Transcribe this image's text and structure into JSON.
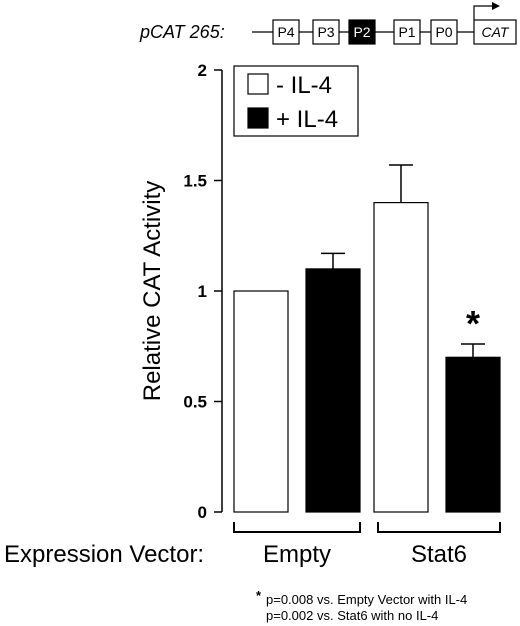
{
  "construct": {
    "name": "pCAT 265:",
    "elements": [
      "P4",
      "P3",
      "P2",
      "P1",
      "P0"
    ],
    "highlighted": "P2",
    "reporter": "CAT"
  },
  "chart_data": {
    "type": "bar",
    "categories": [
      "Empty",
      "Stat6"
    ],
    "series": [
      {
        "name": "- IL-4",
        "values": [
          1.0,
          1.4
        ],
        "errors": [
          0,
          0.17
        ],
        "color": "#ffffff"
      },
      {
        "name": "+ IL-4",
        "values": [
          1.1,
          0.7
        ],
        "errors": [
          0.07,
          0.06
        ],
        "color": "#000000"
      }
    ],
    "xlabel": "Expression Vector:",
    "ylabel": "Relative CAT Activity",
    "ylim": [
      0,
      2
    ],
    "yticks": [
      0,
      0.5,
      1,
      1.5,
      2
    ],
    "ytick_labels": [
      "0",
      "0.5",
      "1",
      "1.5",
      "2"
    ],
    "legend_position": "top-left",
    "grid": false,
    "significance": {
      "marker": "*",
      "category": "Stat6",
      "series": "+ IL-4"
    }
  },
  "footnote": {
    "marker": "*",
    "lines": [
      "p=0.008 vs. Empty Vector with IL-4",
      "p=0.002 vs. Stat6 with no IL-4"
    ]
  }
}
